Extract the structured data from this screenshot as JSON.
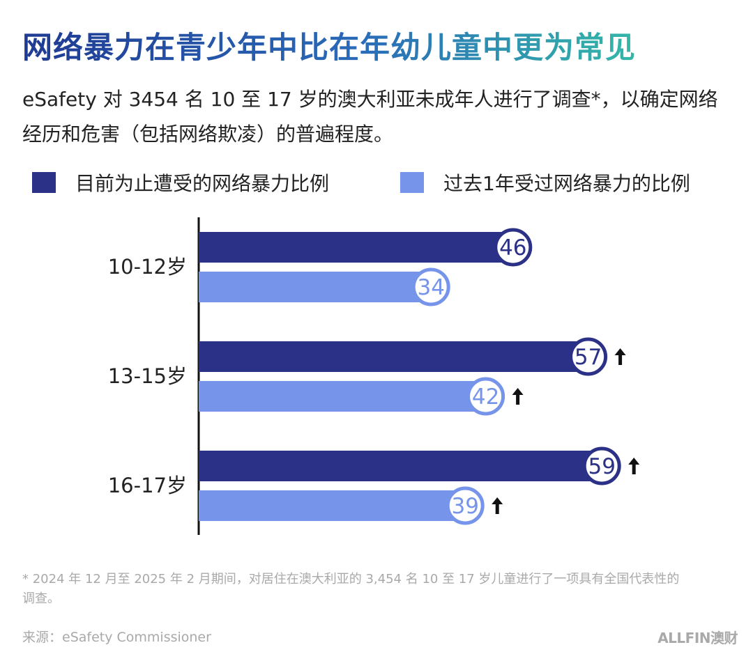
{
  "title": "网络暴力在青少年中比在年幼儿童中更为常见",
  "subtitle": "eSafety 对 3454 名 10 至 17 岁的澳大利亚未成年人进行了调查*，以确定网络经历和危害（包括网络欺凌）的普遍程度。",
  "footnote": "* 2024 年 12 月至 2025 年 2 月期间，对居住在澳大利亚的 3,454 名 10 至 17 岁儿童进行了一项具有全国代表性的调查。",
  "source": "来源：eSafety Commissioner",
  "brand": "ALLFIN澳财",
  "colors": {
    "dark": "#2b3187",
    "light": "#7594ea",
    "arrow": "#111111"
  },
  "chart_data": {
    "type": "bar",
    "orientation": "horizontal",
    "categories": [
      "10-12岁",
      "13-15岁",
      "16-17岁"
    ],
    "series": [
      {
        "name": "目前为止遭受的网络暴力比例",
        "values": [
          46,
          57,
          59
        ],
        "color": "#2b3187"
      },
      {
        "name": "过去1年受过网络暴力的比例",
        "values": [
          34,
          42,
          39
        ],
        "color": "#7594ea"
      }
    ],
    "increase_arrows": [
      [
        false,
        true,
        true
      ],
      [
        false,
        true,
        true
      ]
    ],
    "xlim": [
      0,
      65
    ],
    "grid": false,
    "legend": "top",
    "data_labels": true
  }
}
